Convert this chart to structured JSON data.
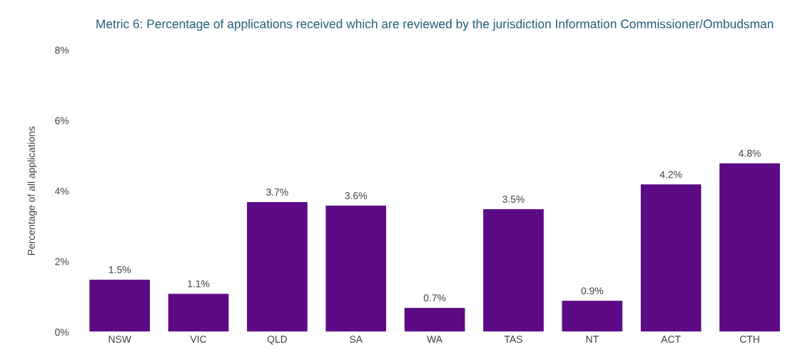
{
  "chart_data": {
    "type": "bar",
    "title": "Metric 6: Percentage of applications received which are reviewed by the jurisdiction Information Commissioner/Ombudsman",
    "ylabel": "Percentage of all applications",
    "categories": [
      "NSW",
      "VIC",
      "QLD",
      "SA",
      "WA",
      "TAS",
      "NT",
      "ACT",
      "CTH"
    ],
    "values": [
      1.5,
      1.1,
      3.7,
      3.6,
      0.7,
      3.5,
      0.9,
      4.2,
      4.8
    ],
    "value_labels": [
      "1.5%",
      "1.1%",
      "3.7%",
      "3.6%",
      "0.7%",
      "3.5%",
      "0.9%",
      "4.2%",
      "4.8%"
    ],
    "color": "#5c0a85",
    "ylim": [
      0,
      8
    ],
    "yticks": [
      {
        "value": 0,
        "label": "0%"
      },
      {
        "value": 2,
        "label": "2%"
      },
      {
        "value": 4,
        "label": "4%"
      },
      {
        "value": 6,
        "label": "6%"
      },
      {
        "value": 8,
        "label": "8%"
      }
    ],
    "grid": false,
    "legend": false
  }
}
